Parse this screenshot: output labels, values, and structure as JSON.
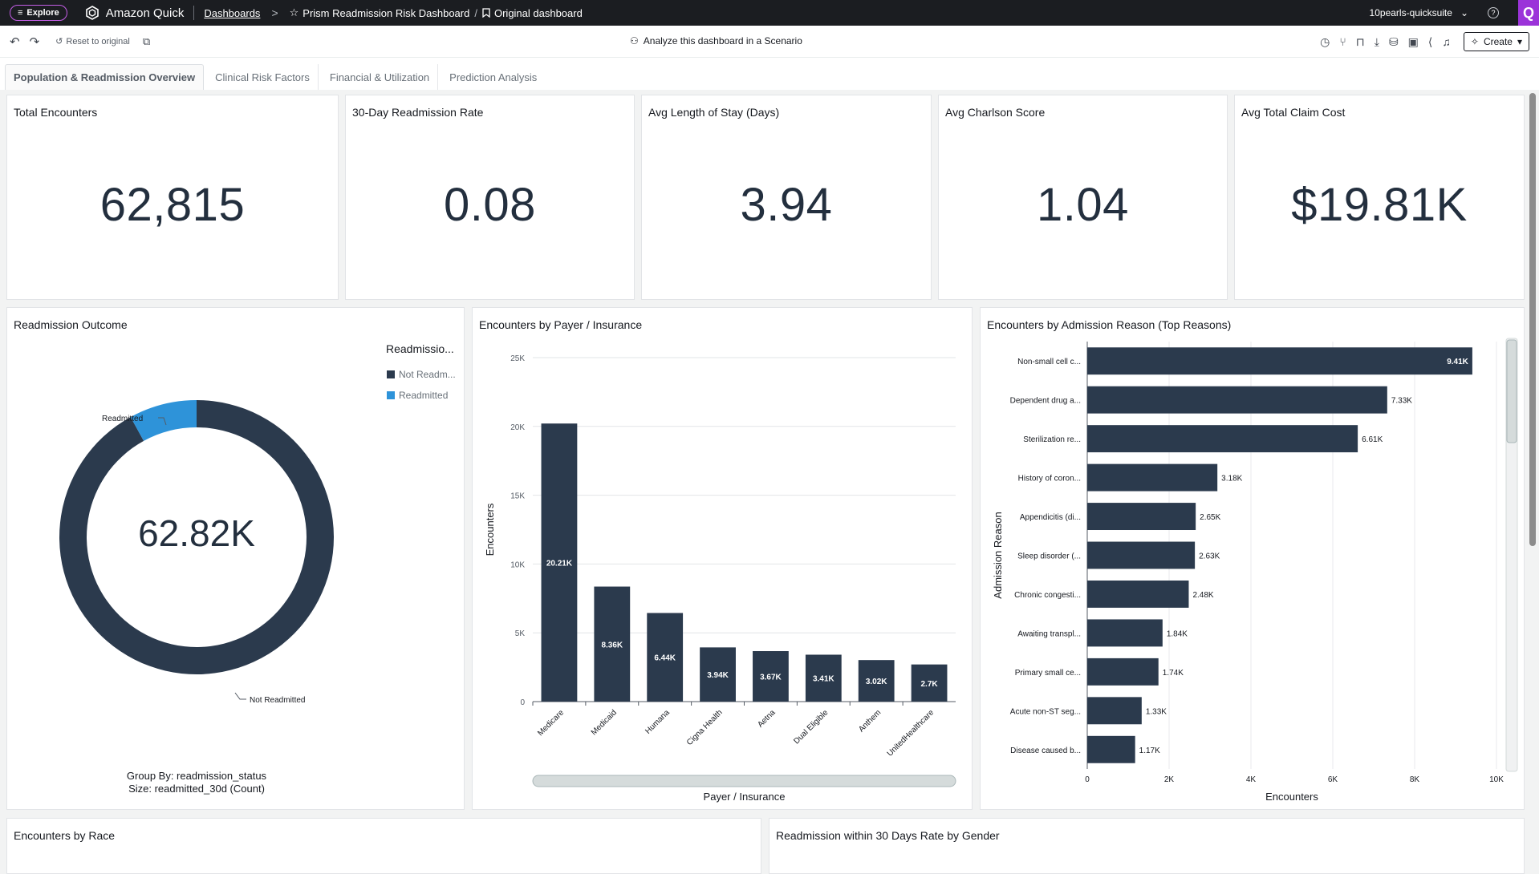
{
  "topnav": {
    "explore_label": "Explore",
    "brand": "Amazon Quick",
    "breadcrumb_root": "Dashboards",
    "dashboard_name": "Prism Readmission Risk Dashboard",
    "view_name": "Original dashboard",
    "account": "10pearls-quicksuite"
  },
  "toolbar": {
    "reset_label": "Reset to original",
    "scenario_label": "Analyze this dashboard in a Scenario",
    "create_label": "Create"
  },
  "tabs": [
    {
      "label": "Population & Readmission Overview",
      "active": true
    },
    {
      "label": "Clinical Risk Factors",
      "active": false
    },
    {
      "label": "Financial & Utilization",
      "active": false
    },
    {
      "label": "Prediction Analysis",
      "active": false
    }
  ],
  "kpis": [
    {
      "title": "Total Encounters",
      "value": "62,815"
    },
    {
      "title": "30-Day Readmission Rate",
      "value": "0.08"
    },
    {
      "title": "Avg Length of Stay (Days)",
      "value": "3.94"
    },
    {
      "title": "Avg Charlson Score",
      "value": "1.04"
    },
    {
      "title": "Avg Total Claim Cost",
      "value": "$19.81K"
    }
  ],
  "donut": {
    "title": "Readmission Outcome",
    "center_value": "62.82K",
    "legend_title": "Readmissio...",
    "legend": [
      {
        "label": "Not Readm...",
        "color": "#2b3a4d"
      },
      {
        "label": "Readmitted",
        "color": "#2e93d9"
      }
    ],
    "slice_labels": {
      "readmitted": "Readmitted",
      "not_readmitted": "Not Readmitted"
    },
    "footer_line1": "Group By: readmission_status",
    "footer_line2": "Size: readmitted_30d (Count)"
  },
  "bottom_titles": {
    "race": "Encounters by Race",
    "gender": "Readmission within 30 Days Rate by Gender"
  },
  "chart_data": [
    {
      "type": "pie",
      "title": "Readmission Outcome",
      "categories": [
        "Not Readmitted",
        "Readmitted"
      ],
      "values": [
        57800,
        5015
      ],
      "total_label": "62.82K",
      "colors": [
        "#2b3a4d",
        "#2e93d9"
      ]
    },
    {
      "type": "bar",
      "title": "Encounters by Payer / Insurance",
      "categories": [
        "Medicare",
        "Medicaid",
        "Humana",
        "Cigna Health",
        "Aetna",
        "Dual Eligible",
        "Anthem",
        "UnitedHealthcare"
      ],
      "values": [
        20210,
        8360,
        6440,
        3940,
        3670,
        3410,
        3020,
        2700
      ],
      "data_labels": [
        "20.21K",
        "8.36K",
        "6.44K",
        "3.94K",
        "3.67K",
        "3.41K",
        "3.02K",
        "2.7K"
      ],
      "xlabel": "Payer / Insurance",
      "ylabel": "Encounters",
      "ylim": [
        0,
        25000
      ],
      "yticks": [
        0,
        5000,
        10000,
        15000,
        20000,
        25000
      ],
      "ytick_labels": [
        "0",
        "5K",
        "10K",
        "15K",
        "20K",
        "25K"
      ],
      "color": "#2b3a4d",
      "grid": true
    },
    {
      "type": "bar",
      "orientation": "horizontal",
      "title": "Encounters by Admission Reason (Top Reasons)",
      "categories": [
        "Non-small cell c...",
        "Dependent drug a...",
        "Sterilization re...",
        "History of coron...",
        "Appendicitis (di...",
        "Sleep disorder (...",
        "Chronic congesti...",
        "Awaiting transpl...",
        "Primary small ce...",
        "Acute non-ST seg...",
        "Disease caused b..."
      ],
      "values": [
        9410,
        7330,
        6610,
        3180,
        2650,
        2630,
        2480,
        1840,
        1740,
        1330,
        1170
      ],
      "data_labels": [
        "9.41K",
        "7.33K",
        "6.61K",
        "3.18K",
        "2.65K",
        "2.63K",
        "2.48K",
        "1.84K",
        "1.74K",
        "1.33K",
        "1.17K"
      ],
      "xlabel": "Encounters",
      "ylabel": "Admission Reason",
      "xlim": [
        0,
        10000
      ],
      "xticks": [
        0,
        2000,
        4000,
        6000,
        8000,
        10000
      ],
      "xtick_labels": [
        "0",
        "2K",
        "4K",
        "6K",
        "8K",
        "10K"
      ],
      "color": "#2b3a4d",
      "grid": true
    }
  ]
}
